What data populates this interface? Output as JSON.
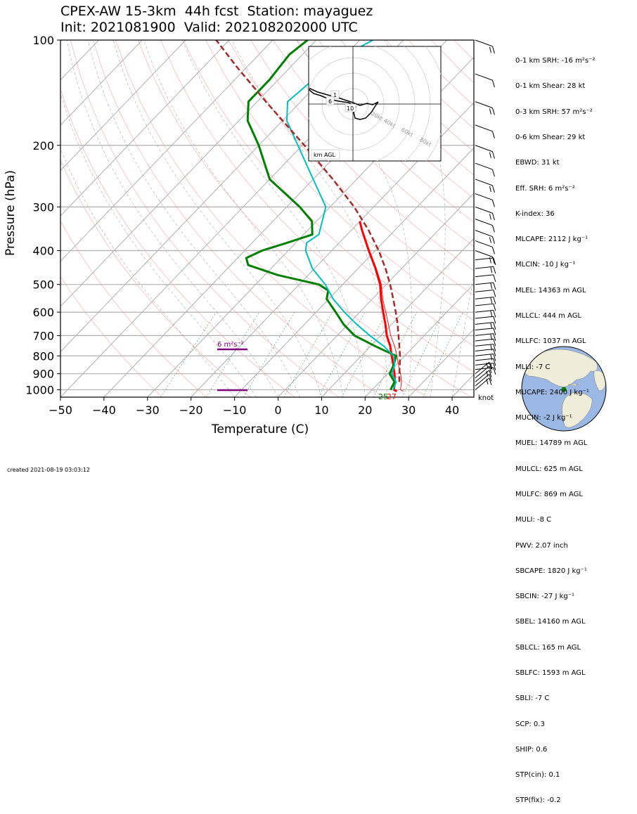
{
  "title_line1": "CPEX-AW 15-3km  44h fcst  Station: mayaguez",
  "title_line2": "Init: 2021081900  Valid: 202108202000 UTC",
  "created": "created 2021-08-19 03:03:12",
  "stats": [
    "0-1 km SRH: -16 m²s⁻²",
    "0-1 km Shear: 28 kt",
    "0-3 km SRH: 57 m²s⁻²",
    "0-6 km Shear: 29 kt",
    "EBWD: 31 kt",
    "Eff. SRH: 6 m²s⁻²",
    "K-index: 36",
    "MLCAPE: 2112 J kg⁻¹",
    "MLCIN: -10 J kg⁻¹",
    "MLEL: 14363 m AGL",
    "MLLCL: 444 m AGL",
    "MLLFC: 1037 m AGL",
    "MLLI: -7 C",
    "MUCAPE: 2400 J kg⁻¹",
    "MUCIN: -2 J kg⁻¹",
    "MUEL: 14789 m AGL",
    "MULCL: 625 m AGL",
    "MULFC: 869 m AGL",
    "MULI: -8 C",
    "PWV: 2.07 inch",
    "SBCAPE: 1820 J kg⁻¹",
    "SBCIN: -27 J kg⁻¹",
    "SBEL: 14160 m AGL",
    "SBLCL: 165 m AGL",
    "SBLFC: 1593 m AGL",
    "SBLI: -7 C",
    "SCP: 0.3",
    "SHIP: 0.6",
    "STP(cin): 0.1",
    "STP(fix): -0.2"
  ],
  "srh_label": "6 m²s⁻²",
  "surface_td_label": "25",
  "surface_t_label": "27",
  "knot_label": "knot",
  "hodo": {
    "corner_label": "km AGL",
    "ring_labels": [
      "20kt",
      "40kt",
      "60kt",
      "80kt"
    ],
    "height_labels": [
      "1",
      "6",
      "10"
    ]
  },
  "colors": {
    "temperature": "#ff0000",
    "dewpoint": "#008000",
    "virtual_temperature": "#ff0000",
    "wetbulb": "#00c0c0",
    "parcel": "#a52a2a",
    "srh_marker": "#800080"
  },
  "chart_data": {
    "type": "line",
    "ylabel": "Pressure (hPa)",
    "xlabel": "Temperature (C)",
    "xlim": [
      -50,
      45
    ],
    "ylim": [
      1050,
      100
    ],
    "y_scale": "log",
    "xticks": [
      -50,
      -40,
      -30,
      -20,
      -10,
      0,
      10,
      20,
      30,
      40
    ],
    "yticks": [
      100,
      200,
      300,
      400,
      500,
      600,
      700,
      800,
      900,
      1000
    ],
    "grid": true,
    "series": [
      {
        "key": "temperature",
        "pressure": [
          1010,
          1000,
          950,
          900,
          850,
          800,
          750,
          700,
          650,
          600,
          550,
          500,
          450,
          400,
          350,
          330
        ],
        "values": [
          26,
          25,
          23.5,
          21.6,
          19.4,
          17,
          14.5,
          11.4,
          8.6,
          5.4,
          2,
          -1.4,
          -6,
          -11.5,
          -17.5,
          -20
        ]
      },
      {
        "key": "virtual_temperature",
        "pressure": [
          1010,
          1000,
          950,
          900,
          850,
          800,
          750,
          700,
          650,
          600,
          550,
          500,
          450,
          400,
          350,
          330
        ],
        "values": [
          27.5,
          26.5,
          25,
          23,
          20.6,
          18.2,
          15.5,
          12.3,
          9.3,
          6,
          2.4,
          -1.1,
          -5.8,
          -11.3,
          -17.4,
          -20
        ]
      },
      {
        "key": "dewpoint",
        "pressure": [
          1000,
          950,
          900,
          850,
          800,
          750,
          700,
          650,
          600,
          550,
          520,
          500,
          470,
          440,
          420,
          400,
          380,
          360,
          330,
          300,
          250,
          200,
          170,
          150,
          130,
          110,
          100
        ],
        "values": [
          24.2,
          23.4,
          20.5,
          19.5,
          18,
          11,
          4,
          -1,
          -5.5,
          -10.5,
          -12,
          -15.5,
          -27,
          -36,
          -38,
          -36,
          -32,
          -28,
          -31,
          -37,
          -50,
          -60,
          -68,
          -72,
          -72,
          -73,
          -72
        ]
      },
      {
        "key": "wetbulb",
        "pressure": [
          1000,
          950,
          900,
          850,
          800,
          750,
          700,
          650,
          600,
          550,
          500,
          450,
          400,
          380,
          360,
          300,
          250,
          200,
          170,
          150,
          130,
          110,
          100
        ],
        "values": [
          24.8,
          23.8,
          21,
          19.7,
          17.5,
          13,
          7.5,
          2,
          -3.5,
          -9,
          -14,
          -20.5,
          -26,
          -27.5,
          -26.5,
          -31,
          -40,
          -51,
          -59,
          -63,
          -62,
          -60,
          -57
        ]
      },
      {
        "key": "parcel",
        "pressure": [
          950,
          900,
          850,
          800,
          750,
          700,
          650,
          600,
          550,
          500,
          450,
          400,
          350,
          300,
          250,
          200,
          150,
          120,
          100
        ],
        "values": [
          24.5,
          22.7,
          20.9,
          18.9,
          16.6,
          14.1,
          11.4,
          8.3,
          4.8,
          0.9,
          -3.7,
          -9.2,
          -16,
          -24.5,
          -35.5,
          -49.5,
          -68,
          -82,
          -93
        ]
      }
    ],
    "wind_barbs_right": true
  }
}
